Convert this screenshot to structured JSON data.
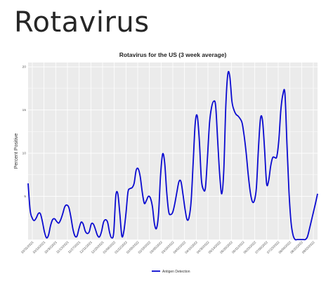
{
  "page": {
    "title": "Rotavirus"
  },
  "colors": {
    "line": "#0a0ad0",
    "panel": "#ebebeb",
    "grid": "#ffffff"
  },
  "chart_data": {
    "type": "line",
    "title": "Rotavirus for the US (3 week average)",
    "xlabel": "",
    "ylabel": "Percent Positive",
    "ylim": [
      0,
      20.5
    ],
    "yticks": [
      {
        "value": 5,
        "label": "5"
      },
      {
        "value": 10,
        "label": "10"
      },
      {
        "value": 15,
        "label": "15"
      },
      {
        "value": 20,
        "label": "20"
      }
    ],
    "grid": true,
    "legend_position": "bottom",
    "xtick_labels": [
      "10/31/2021",
      "10/16/2021",
      "10/30/2021",
      "11/13/2021",
      "11/27/2021",
      "12/11/2021",
      "12/25/2021",
      "01/08/2022",
      "01/22/2022",
      "02/05/2022",
      "02/19/2022",
      "03/05/2022",
      "03/19/2022",
      "04/02/2022",
      "04/16/2022",
      "04/30/2022",
      "05/14/2022",
      "05/28/2022",
      "06/11/2022",
      "06/25/2022",
      "07/09/2022",
      "07/23/2022",
      "08/06/2022",
      "08/20/2022",
      "09/03/2022"
    ],
    "series": [
      {
        "name": "Antigen Detection",
        "values": [
          6.5,
          3.4,
          2.5,
          2.2,
          2.5,
          3.0,
          3.0,
          2.1,
          0.9,
          0.2,
          0.5,
          1.6,
          2.3,
          2.4,
          2.1,
          1.9,
          2.3,
          3.0,
          3.8,
          4.0,
          3.7,
          2.6,
          1.2,
          0.4,
          0.4,
          1.3,
          2.0,
          1.8,
          1.0,
          0.7,
          0.9,
          1.8,
          1.8,
          1.2,
          0.5,
          0.3,
          0.9,
          2.0,
          2.3,
          2.0,
          0.8,
          0.2,
          0.8,
          5.0,
          5.3,
          3.0,
          0.4,
          1.0,
          3.0,
          5.5,
          5.9,
          6.0,
          6.5,
          8.0,
          8.2,
          7.3,
          5.5,
          4.2,
          4.5,
          5.0,
          4.8,
          3.8,
          1.8,
          1.3,
          3.0,
          7.5,
          9.9,
          8.9,
          5.5,
          3.2,
          2.9,
          3.2,
          4.2,
          5.5,
          6.7,
          6.7,
          5.2,
          3.5,
          2.3,
          2.6,
          4.5,
          9.0,
          13.5,
          14.3,
          11.5,
          7.0,
          5.8,
          6.0,
          9.5,
          13.5,
          15.3,
          16.0,
          15.5,
          11.5,
          7.5,
          5.3,
          8.0,
          15.5,
          19.2,
          18.8,
          16.0,
          15.0,
          14.5,
          14.3,
          14.0,
          13.5,
          12.0,
          10.0,
          7.5,
          5.5,
          4.4,
          4.5,
          6.0,
          10.5,
          14.0,
          13.8,
          10.5,
          6.5,
          6.8,
          8.5,
          9.5,
          9.5,
          9.6,
          11.5,
          15.0,
          16.8,
          16.9,
          11.0,
          5.5,
          2.0,
          0.5,
          0.0,
          0.0,
          0.0,
          0.0,
          0.0,
          0.0,
          0.3,
          1.2,
          2.2,
          3.2,
          4.2,
          5.3
        ]
      }
    ]
  }
}
